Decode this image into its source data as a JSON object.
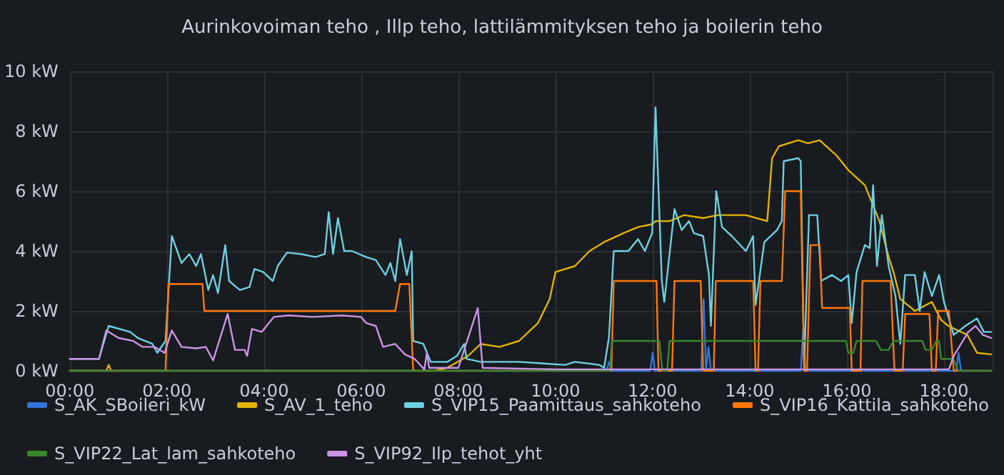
{
  "chart_data": {
    "type": "line",
    "title": "Aurinkovoiman teho , Illp teho, lattilämmityksen teho ja boilerin teho",
    "xlim": [
      0,
      19
    ],
    "xticks": [
      {
        "value": 0,
        "label": "00:00"
      },
      {
        "value": 2,
        "label": "02:00"
      },
      {
        "value": 4,
        "label": "04:00"
      },
      {
        "value": 6,
        "label": "06:00"
      },
      {
        "value": 8,
        "label": "08:00"
      },
      {
        "value": 10,
        "label": "10:00"
      },
      {
        "value": 12,
        "label": "12:00"
      },
      {
        "value": 14,
        "label": "14:00"
      },
      {
        "value": 16,
        "label": "16:00"
      },
      {
        "value": 18,
        "label": "18:00"
      }
    ],
    "ylim": [
      0,
      10
    ],
    "yticks": [
      {
        "value": 0,
        "label": "0 kW"
      },
      {
        "value": 2,
        "label": "2 kW"
      },
      {
        "value": 4,
        "label": "4 kW"
      },
      {
        "value": 6,
        "label": "6 kW"
      },
      {
        "value": 8,
        "label": "8 kW"
      },
      {
        "value": 10,
        "label": "10 kW"
      }
    ],
    "grid": true,
    "legend": "bottom",
    "marker": "none",
    "line_style": "solid",
    "series": [
      {
        "name": "S_AK_SBoileri_kW",
        "color": "#3274d9",
        "x": [
          0,
          11.05,
          11.1,
          11.15,
          11.95,
          12.0,
          12.05,
          13.0,
          13.05,
          13.1,
          13.15,
          13.2,
          13.25,
          15.05,
          15.1,
          15.15,
          18.25,
          18.3,
          18.35,
          18.97
        ],
        "values": [
          0,
          0,
          0.3,
          0,
          0,
          0.6,
          0,
          0,
          2.4,
          0,
          0.8,
          0,
          0,
          0,
          1.4,
          0,
          0,
          0.6,
          0,
          0
        ]
      },
      {
        "name": "S_AV_1_teho",
        "color": "#e0b400",
        "x": [
          0,
          0.75,
          0.8,
          0.85,
          7.5,
          7.77,
          8.2,
          8.46,
          8.85,
          9.25,
          9.64,
          9.88,
          10.0,
          10.4,
          10.7,
          11.0,
          11.4,
          11.7,
          12.0,
          12.06,
          12.35,
          12.65,
          13.04,
          13.34,
          13.92,
          14.36,
          14.46,
          14.6,
          15.0,
          15.2,
          15.44,
          15.78,
          16.03,
          16.37,
          16.67,
          16.86,
          16.96,
          17.1,
          17.4,
          17.75,
          17.94,
          18.09,
          18.48,
          18.68,
          18.97
        ],
        "values": [
          0,
          0,
          0.2,
          0,
          0,
          0.1,
          0.5,
          0.9,
          0.8,
          1.0,
          1.6,
          2.4,
          3.3,
          3.5,
          4.0,
          4.3,
          4.6,
          4.8,
          4.9,
          5.0,
          5.0,
          5.2,
          5.1,
          5.2,
          5.2,
          5.0,
          7.1,
          7.5,
          7.7,
          7.6,
          7.7,
          7.2,
          6.7,
          6.2,
          5.0,
          3.8,
          3.3,
          2.4,
          2.0,
          2.3,
          1.7,
          1.5,
          1.2,
          0.6,
          0.55
        ]
      },
      {
        "name": "S_VIP15_Paamittaus_sahkoteho",
        "color": "#6ed0e0",
        "x": [
          0,
          0.6,
          0.8,
          1.24,
          1.4,
          1.7,
          1.8,
          1.97,
          2.1,
          2.3,
          2.46,
          2.6,
          2.7,
          2.85,
          2.95,
          3.05,
          3.2,
          3.28,
          3.5,
          3.7,
          3.8,
          3.98,
          4.18,
          4.28,
          4.47,
          4.76,
          5.06,
          5.25,
          5.33,
          5.42,
          5.52,
          5.65,
          5.81,
          6.1,
          6.3,
          6.5,
          6.6,
          6.7,
          6.8,
          6.94,
          7.04,
          7.07,
          7.28,
          7.43,
          7.77,
          7.97,
          8.12,
          8.17,
          8.46,
          9.25,
          10.2,
          10.4,
          10.9,
          11.0,
          11.1,
          11.2,
          11.5,
          11.7,
          11.84,
          11.99,
          12.06,
          12.19,
          12.24,
          12.45,
          12.6,
          12.75,
          12.85,
          13.04,
          13.16,
          13.2,
          13.31,
          13.43,
          13.63,
          13.92,
          14.07,
          14.12,
          14.3,
          14.56,
          14.66,
          14.7,
          15.0,
          15.05,
          15.12,
          15.22,
          15.39,
          15.47,
          15.69,
          15.88,
          16.03,
          16.1,
          16.2,
          16.37,
          16.47,
          16.54,
          16.62,
          16.72,
          16.86,
          17.0,
          17.1,
          17.2,
          17.4,
          17.5,
          17.6,
          17.75,
          17.9,
          18.0,
          18.2,
          18.44,
          18.68,
          18.82,
          18.97
        ],
        "values": [
          0.4,
          0.4,
          1.5,
          1.3,
          1.1,
          0.9,
          0.6,
          1.0,
          4.5,
          3.6,
          3.9,
          3.5,
          3.9,
          2.7,
          3.2,
          2.6,
          4.2,
          3.0,
          2.7,
          2.8,
          3.4,
          3.3,
          3.0,
          3.5,
          3.95,
          3.9,
          3.8,
          3.9,
          5.3,
          3.9,
          5.1,
          4.0,
          4.0,
          3.8,
          3.7,
          3.2,
          3.6,
          3.0,
          4.4,
          3.2,
          4.0,
          1.0,
          0.9,
          0.3,
          0.3,
          0.5,
          0.9,
          0.4,
          0.3,
          0.3,
          0.2,
          0.3,
          0.2,
          0.1,
          1.1,
          4.0,
          4.0,
          4.4,
          4.0,
          4.6,
          8.8,
          3.0,
          2.3,
          5.4,
          4.7,
          5.0,
          4.6,
          4.5,
          3.2,
          1.5,
          6.0,
          4.8,
          4.5,
          4.0,
          4.5,
          2.2,
          4.3,
          4.7,
          5.0,
          7.0,
          7.1,
          7.0,
          0.1,
          5.2,
          5.2,
          3.0,
          3.2,
          3.0,
          3.2,
          1.6,
          3.3,
          4.2,
          4.1,
          6.2,
          3.5,
          5.2,
          3.5,
          2.5,
          0.9,
          3.2,
          3.2,
          2.0,
          3.3,
          2.5,
          3.2,
          2.3,
          1.2,
          1.5,
          1.75,
          1.3,
          1.3
        ]
      },
      {
        "name": "S_VIP16_Kattila_sahkoteho",
        "color": "#ff780a",
        "x": [
          0,
          1.97,
          2.03,
          2.73,
          2.77,
          6.7,
          6.8,
          6.99,
          7.07,
          11.15,
          11.2,
          12.08,
          12.12,
          12.4,
          12.45,
          12.99,
          13.04,
          13.26,
          13.3,
          14.07,
          14.12,
          14.17,
          14.22,
          14.66,
          14.73,
          15.05,
          15.12,
          15.18,
          15.25,
          15.44,
          15.49,
          16.06,
          16.1,
          16.28,
          16.32,
          16.9,
          16.98,
          17.15,
          17.2,
          17.7,
          17.75,
          17.83,
          17.88,
          18.1,
          18.2,
          18.97
        ],
        "values": [
          0,
          0,
          2.9,
          2.9,
          2.0,
          2.0,
          2.9,
          2.9,
          0,
          0,
          3.0,
          3.0,
          0,
          0,
          3.0,
          3.0,
          0,
          0,
          3.0,
          3.0,
          0,
          0,
          3.0,
          3.0,
          6.0,
          6.0,
          0,
          0,
          4.2,
          4.2,
          2.1,
          2.1,
          0,
          0,
          3.0,
          3.0,
          0,
          0,
          1.9,
          1.9,
          0,
          0,
          2.0,
          2.0,
          0,
          0
        ]
      },
      {
        "name": "S_VIP22_Lat_lam_sahkoteho",
        "color": "#37872d",
        "x": [
          0,
          11.12,
          11.16,
          12.14,
          12.2,
          12.3,
          12.35,
          15.98,
          16.03,
          16.13,
          16.2,
          16.6,
          16.7,
          16.86,
          16.96,
          17.55,
          17.62,
          17.75,
          17.84,
          17.9,
          17.94,
          18.19,
          18.3,
          18.97
        ],
        "values": [
          0,
          0,
          1.0,
          1.0,
          0,
          0,
          1.0,
          1.0,
          0.6,
          0.6,
          1.0,
          1.0,
          0.7,
          0.7,
          1.0,
          1.0,
          0.7,
          0.7,
          1.0,
          1.0,
          0.4,
          0.4,
          0,
          0
        ]
      },
      {
        "name": "S_VIP92_Ilp_tehot_yht",
        "color": "#ca95e5",
        "x": [
          0,
          0.6,
          0.75,
          1.0,
          1.3,
          1.5,
          1.75,
          1.95,
          2.1,
          2.3,
          2.6,
          2.8,
          2.95,
          3.25,
          3.4,
          3.6,
          3.65,
          3.75,
          3.95,
          4.2,
          4.5,
          5.0,
          5.6,
          6.0,
          6.1,
          6.3,
          6.45,
          6.7,
          6.9,
          7.1,
          7.3,
          7.35,
          7.4,
          8.0,
          8.4,
          8.5,
          10.0,
          12.0,
          14.0,
          16.0,
          18.1,
          18.2,
          18.5,
          18.65,
          18.8,
          18.97
        ],
        "values": [
          0.4,
          0.4,
          1.35,
          1.1,
          1.0,
          0.8,
          0.8,
          0.6,
          1.35,
          0.8,
          0.75,
          0.8,
          0.35,
          1.9,
          0.7,
          0.7,
          0.5,
          1.4,
          1.3,
          1.8,
          1.85,
          1.8,
          1.85,
          1.8,
          1.6,
          1.5,
          0.8,
          0.9,
          0.55,
          0.4,
          0.05,
          0.6,
          0.1,
          0.1,
          2.1,
          0.1,
          0.05,
          0.05,
          0.05,
          0.05,
          0.05,
          0.5,
          1.3,
          1.5,
          1.2,
          1.1
        ]
      }
    ]
  }
}
